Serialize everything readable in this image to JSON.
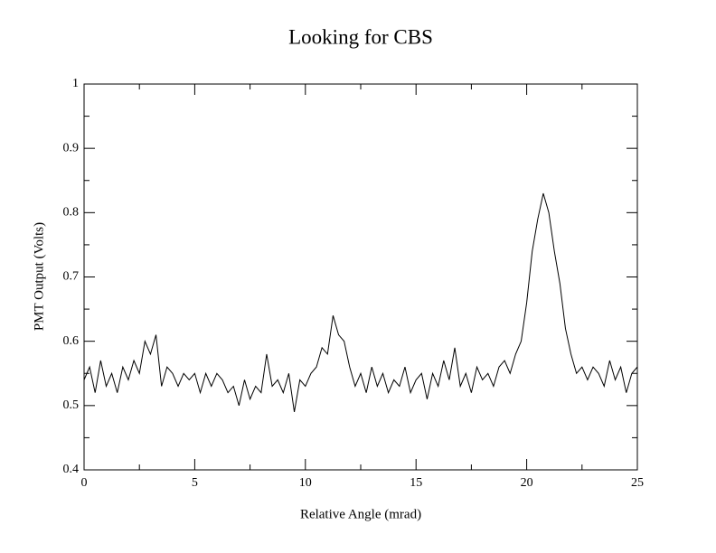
{
  "chart_data": {
    "type": "line",
    "title": "Looking for CBS",
    "x_label": "Relative Angle (mrad)",
    "y_label": "PMT Output (Volts)",
    "x": [
      0,
      0.25,
      0.5,
      0.75,
      1,
      1.25,
      1.5,
      1.75,
      2,
      2.25,
      2.5,
      2.75,
      3,
      3.25,
      3.5,
      3.75,
      4,
      4.25,
      4.5,
      4.75,
      5,
      5.25,
      5.5,
      5.75,
      6,
      6.25,
      6.5,
      6.75,
      7,
      7.25,
      7.5,
      7.75,
      8,
      8.25,
      8.5,
      8.75,
      9,
      9.25,
      9.5,
      9.75,
      10,
      10.25,
      10.5,
      10.75,
      11,
      11.25,
      11.5,
      11.75,
      12,
      12.25,
      12.5,
      12.75,
      13,
      13.25,
      13.5,
      13.75,
      14,
      14.25,
      14.5,
      14.75,
      15,
      15.25,
      15.5,
      15.75,
      16,
      16.25,
      16.5,
      16.75,
      17,
      17.25,
      17.5,
      17.75,
      18,
      18.25,
      18.5,
      18.75,
      19,
      19.25,
      19.5,
      19.75,
      20,
      20.25,
      20.5,
      20.75,
      21,
      21.25,
      21.5,
      21.75,
      22,
      22.25,
      22.5,
      22.75,
      23,
      23.25,
      23.5,
      23.75,
      24,
      24.25,
      24.5,
      24.75,
      25
    ],
    "series": [
      {
        "color": "#000000",
        "values": [
          0.54,
          0.56,
          0.52,
          0.57,
          0.53,
          0.55,
          0.52,
          0.56,
          0.54,
          0.57,
          0.55,
          0.6,
          0.58,
          0.61,
          0.53,
          0.56,
          0.55,
          0.53,
          0.55,
          0.54,
          0.55,
          0.52,
          0.55,
          0.53,
          0.55,
          0.54,
          0.52,
          0.53,
          0.5,
          0.54,
          0.51,
          0.53,
          0.52,
          0.58,
          0.53,
          0.54,
          0.52,
          0.55,
          0.49,
          0.54,
          0.53,
          0.55,
          0.56,
          0.59,
          0.58,
          0.64,
          0.61,
          0.6,
          0.56,
          0.53,
          0.55,
          0.52,
          0.56,
          0.53,
          0.55,
          0.52,
          0.54,
          0.53,
          0.56,
          0.52,
          0.54,
          0.55,
          0.51,
          0.55,
          0.53,
          0.57,
          0.54,
          0.59,
          0.53,
          0.55,
          0.52,
          0.56,
          0.54,
          0.55,
          0.53,
          0.56,
          0.57,
          0.55,
          0.58,
          0.6,
          0.66,
          0.74,
          0.79,
          0.83,
          0.8,
          0.74,
          0.69,
          0.62,
          0.58,
          0.55,
          0.56,
          0.54,
          0.56,
          0.55,
          0.53,
          0.57,
          0.54,
          0.56,
          0.52,
          0.55,
          0.56
        ]
      }
    ],
    "xlim": [
      0,
      25
    ],
    "xticks": [
      0,
      5,
      10,
      15,
      20,
      25
    ],
    "xminorticks": [
      2.5,
      7.5,
      12.5,
      17.5,
      22.5
    ],
    "ylim": [
      0.4,
      1
    ],
    "yticks": [
      0.4,
      0.5,
      0.6,
      0.7,
      0.8,
      0.9,
      1
    ],
    "yminorticks": [
      0.45,
      0.55,
      0.65,
      0.75,
      0.85,
      0.95
    ]
  }
}
